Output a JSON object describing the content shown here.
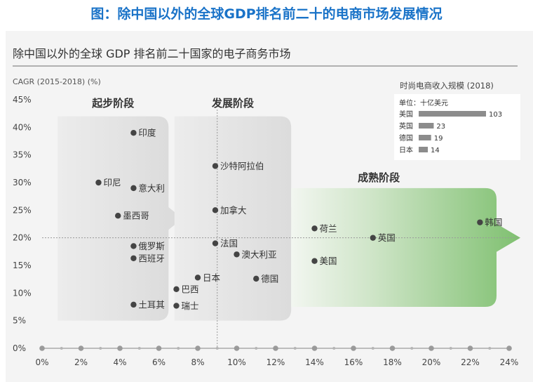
{
  "banner_title": "图：除中国以外的全球GDP排名前二十的电商市场发展情况",
  "chart_data": {
    "type": "scatter",
    "title": "除中国以外的全球 GDP 排名前二十国家的电子商务市场",
    "ylabel": "CAGR (2015-2018) (%)",
    "xlabel": "",
    "xlim": [
      0,
      24
    ],
    "ylim": [
      0,
      45
    ],
    "x_ticks": [
      0,
      2,
      4,
      6,
      8,
      10,
      12,
      14,
      16,
      18,
      20,
      22,
      24
    ],
    "y_ticks": [
      0,
      5,
      10,
      15,
      20,
      25,
      30,
      35,
      40,
      45
    ],
    "x_tick_labels": [
      "0%",
      "2%",
      "4%",
      "6%",
      "8%",
      "10%",
      "12%",
      "14%",
      "16%",
      "18%",
      "20%",
      "22%",
      "24%"
    ],
    "y_tick_labels": [
      "0%",
      "5%",
      "10%",
      "15%",
      "20%",
      "25%",
      "30%",
      "35%",
      "40%",
      "45%"
    ],
    "reference_lines": {
      "x": 9,
      "y": 20
    },
    "stages": [
      {
        "label": "起步阶段",
        "x_range": [
          0.8,
          6.5
        ],
        "y_range": [
          5,
          42
        ]
      },
      {
        "label": "发展阶段",
        "x_range": [
          6.8,
          12.8
        ],
        "y_range": [
          5,
          42
        ]
      },
      {
        "label": "成熟阶段",
        "x_range": [
          12.8,
          24
        ],
        "y_range": [
          7.5,
          29
        ]
      }
    ],
    "points": [
      {
        "label": "印度",
        "x": 4.7,
        "y": 39
      },
      {
        "label": "印尼",
        "x": 2.9,
        "y": 30
      },
      {
        "label": "意大利",
        "x": 4.7,
        "y": 29
      },
      {
        "label": "墨西哥",
        "x": 3.9,
        "y": 24
      },
      {
        "label": "俄罗斯",
        "x": 4.7,
        "y": 18.5
      },
      {
        "label": "西班牙",
        "x": 4.7,
        "y": 16.3
      },
      {
        "label": "土耳其",
        "x": 4.7,
        "y": 7.9
      },
      {
        "label": "沙特阿拉伯",
        "x": 8.9,
        "y": 33
      },
      {
        "label": "加拿大",
        "x": 8.9,
        "y": 25
      },
      {
        "label": "法国",
        "x": 8.9,
        "y": 19
      },
      {
        "label": "澳大利亚",
        "x": 10,
        "y": 17
      },
      {
        "label": "日本",
        "x": 8,
        "y": 12.8
      },
      {
        "label": "巴西",
        "x": 6.9,
        "y": 10.7
      },
      {
        "label": "瑞士",
        "x": 6.9,
        "y": 7.7
      },
      {
        "label": "德国",
        "x": 11,
        "y": 12.6
      },
      {
        "label": "荷兰",
        "x": 14,
        "y": 21.7
      },
      {
        "label": "美国",
        "x": 14,
        "y": 15.8
      },
      {
        "label": "英国",
        "x": 17,
        "y": 20
      },
      {
        "label": "韩国",
        "x": 22.5,
        "y": 22.8
      }
    ],
    "inset": {
      "title": "时尚电商收入规模 (2018)",
      "unit": "单位：十亿美元",
      "categories": [
        "美国",
        "英国",
        "德国",
        "日本"
      ],
      "values": [
        103,
        23,
        19,
        14
      ]
    }
  },
  "colors": {
    "banner": "#1a73c8",
    "point": "#444444",
    "stage_gray": "#dcdcdc",
    "stage_green": "#7fc070",
    "inset_bar": "#8c8c8c"
  }
}
